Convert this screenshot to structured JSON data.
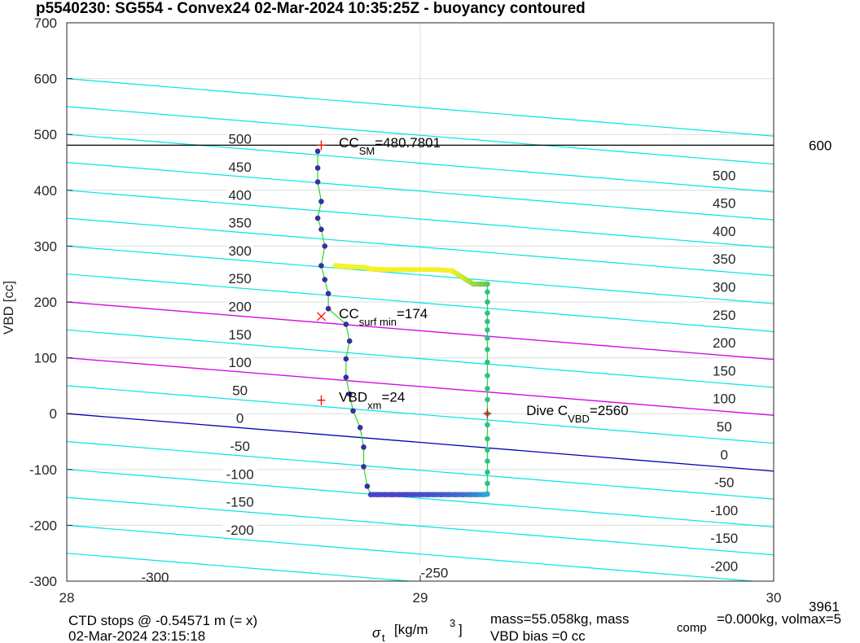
{
  "chart_data": {
    "type": "scatter",
    "title": "p5540230: SG554 - Convex24 02-Mar-2024 10:35:25Z - buoyancy contoured",
    "ylabel": "VBD [cc]",
    "xlabel_parts": {
      "sym": "σ",
      "sub": "t",
      "units": "[kg/m",
      "sup": "3",
      "close": "]"
    },
    "xlim": [
      28,
      30
    ],
    "ylim": [
      -300,
      700
    ],
    "xticks": [
      "28",
      "29",
      "30"
    ],
    "yticks": [
      "-300",
      "-200",
      "-100",
      "0",
      "100",
      "200",
      "300",
      "400",
      "500",
      "600",
      "700"
    ],
    "grid": true,
    "contour_slope": -51.5,
    "contours": {
      "cyan": [
        -350,
        -300,
        -250,
        -200,
        -150,
        -100,
        -50,
        50,
        100,
        150,
        200,
        250,
        300,
        350,
        400,
        450,
        500,
        550,
        600
      ],
      "magenta": [
        200,
        100
      ],
      "blue": [
        0
      ]
    },
    "contour_labels": [
      {
        "text": "500",
        "x": 28.49,
        "y": 492
      },
      {
        "text": "450",
        "x": 28.49,
        "y": 442
      },
      {
        "text": "400",
        "x": 28.49,
        "y": 392
      },
      {
        "text": "350",
        "x": 28.49,
        "y": 342
      },
      {
        "text": "300",
        "x": 28.49,
        "y": 292
      },
      {
        "text": "250",
        "x": 28.49,
        "y": 242
      },
      {
        "text": "200",
        "x": 28.49,
        "y": 192
      },
      {
        "text": "150",
        "x": 28.49,
        "y": 142
      },
      {
        "text": "100",
        "x": 28.49,
        "y": 92
      },
      {
        "text": "50",
        "x": 28.49,
        "y": 42
      },
      {
        "text": "0",
        "x": 28.49,
        "y": -8
      },
      {
        "text": "-50",
        "x": 28.49,
        "y": -58
      },
      {
        "text": "-100",
        "x": 28.49,
        "y": -108
      },
      {
        "text": "-150",
        "x": 28.49,
        "y": -158
      },
      {
        "text": "-200",
        "x": 28.49,
        "y": -208
      },
      {
        "text": "-300",
        "x": 28.25,
        "y": -293
      },
      {
        "text": "-250",
        "x": 29.04,
        "y": -285
      },
      {
        "text": "500",
        "x": 29.86,
        "y": 427
      },
      {
        "text": "450",
        "x": 29.86,
        "y": 377
      },
      {
        "text": "400",
        "x": 29.86,
        "y": 327
      },
      {
        "text": "350",
        "x": 29.86,
        "y": 277
      },
      {
        "text": "300",
        "x": 29.86,
        "y": 227
      },
      {
        "text": "250",
        "x": 29.86,
        "y": 177
      },
      {
        "text": "200",
        "x": 29.86,
        "y": 127
      },
      {
        "text": "150",
        "x": 29.86,
        "y": 77
      },
      {
        "text": "100",
        "x": 29.86,
        "y": 27
      },
      {
        "text": "50",
        "x": 29.86,
        "y": -23
      },
      {
        "text": "0",
        "x": 29.86,
        "y": -73
      },
      {
        "text": "-50",
        "x": 29.86,
        "y": -123
      },
      {
        "text": "-100",
        "x": 29.86,
        "y": -173
      },
      {
        "text": "-150",
        "x": 29.86,
        "y": -223
      },
      {
        "text": "-200",
        "x": 29.86,
        "y": -273
      }
    ],
    "hline": {
      "y": 480.78,
      "label": "600"
    },
    "series": [
      {
        "values": [
          [
            28.71,
            470
          ],
          [
            28.71,
            440
          ],
          [
            28.71,
            415
          ],
          [
            28.72,
            380
          ],
          [
            28.71,
            350
          ],
          [
            28.72,
            330
          ],
          [
            28.73,
            300
          ],
          [
            28.72,
            265
          ],
          [
            28.73,
            240
          ],
          [
            28.74,
            215
          ],
          [
            28.74,
            188
          ],
          [
            28.79,
            160
          ],
          [
            28.8,
            130
          ],
          [
            28.79,
            98
          ],
          [
            28.79,
            65
          ],
          [
            28.8,
            35
          ],
          [
            28.81,
            5
          ],
          [
            28.83,
            -25
          ],
          [
            28.84,
            -60
          ],
          [
            28.84,
            -95
          ],
          [
            28.85,
            -130
          ],
          [
            28.86,
            -145
          ]
        ]
      },
      {
        "values": [
          [
            28.86,
            -145
          ],
          [
            28.88,
            -145
          ],
          [
            28.9,
            -145
          ],
          [
            28.92,
            -145
          ],
          [
            28.94,
            -145
          ],
          [
            28.96,
            -145
          ],
          [
            28.98,
            -145
          ],
          [
            29.0,
            -145
          ],
          [
            29.02,
            -145
          ],
          [
            29.04,
            -145
          ],
          [
            29.06,
            -145
          ],
          [
            29.08,
            -145
          ],
          [
            29.1,
            -145
          ],
          [
            29.12,
            -145
          ],
          [
            29.14,
            -145
          ],
          [
            29.16,
            -145
          ],
          [
            29.18,
            -145
          ],
          [
            29.19,
            -144
          ]
        ]
      },
      {
        "values": [
          [
            29.19,
            -144
          ],
          [
            29.19,
            -125
          ],
          [
            29.19,
            -105
          ],
          [
            29.19,
            -85
          ],
          [
            29.19,
            -65
          ],
          [
            29.19,
            -45
          ],
          [
            29.19,
            -20
          ],
          [
            29.19,
            0
          ],
          [
            29.19,
            25
          ],
          [
            29.19,
            45
          ],
          [
            29.19,
            68
          ],
          [
            29.19,
            92
          ],
          [
            29.19,
            115
          ],
          [
            29.19,
            135
          ],
          [
            29.19,
            150
          ],
          [
            29.19,
            165
          ],
          [
            29.19,
            180
          ],
          [
            29.19,
            200
          ],
          [
            29.19,
            218
          ],
          [
            29.19,
            232
          ]
        ]
      },
      {
        "values": [
          [
            29.19,
            232
          ],
          [
            29.17,
            232
          ],
          [
            29.15,
            232
          ],
          [
            29.13,
            240
          ],
          [
            29.11,
            248
          ],
          [
            29.09,
            256
          ],
          [
            29.05,
            258
          ],
          [
            29.0,
            258
          ],
          [
            28.95,
            258
          ],
          [
            28.9,
            258
          ],
          [
            28.86,
            259
          ],
          [
            28.84,
            262
          ],
          [
            28.8,
            263
          ],
          [
            28.78,
            264
          ],
          [
            28.76,
            265
          ]
        ]
      }
    ],
    "markers": [
      {
        "kind": "plus",
        "x": 28.72,
        "y": 480.78,
        "color": "#ff0000"
      },
      {
        "kind": "x",
        "x": 28.72,
        "y": 174,
        "color": "#ff0000"
      },
      {
        "kind": "plus",
        "x": 28.72,
        "y": 24,
        "color": "#ff0000"
      },
      {
        "kind": "plus",
        "x": 29.19,
        "y": 0,
        "color": "#ff0000"
      }
    ],
    "annotations": [
      {
        "main": "CC",
        "sub": "SM",
        "tail": "=480.7801",
        "x": 28.77,
        "y": 480
      },
      {
        "main": "CC",
        "sub": "surf min",
        "tail": "=174",
        "x": 28.77,
        "y": 174
      },
      {
        "main": "VBD",
        "sub": "xm",
        "tail": "=24",
        "x": 28.77,
        "y": 24
      },
      {
        "main": "Dive C",
        "sub": "VBD",
        "tail": "=2560",
        "x": 29.3,
        "y": 0
      }
    ]
  },
  "footer": {
    "left_line1": "CTD stops @ -0.54571 m (= x)",
    "left_line2": "02-Mar-2024 23:15:18",
    "mass_line1": "mass=55.058kg, mass",
    "mass_sub": "comp",
    "mass_tail": "=0.000kg, volmax=5",
    "mass_line2": "VBD bias =0 cc",
    "right_num": "3961"
  },
  "colors": {
    "cyan": "#00e5e5",
    "magenta": "#e600e6",
    "blue": "#0000b3",
    "hline": "#000000",
    "grid": "#dcdcdc",
    "axis": "#262626",
    "dot_descent": "#3a2da0",
    "dot_bottom": "#4a44cf",
    "dot_bottom_end": "#2ea8d8",
    "dot_ascent": "#2fc08a",
    "dot_top_start": "#5cc55c",
    "dot_top_end": "#f5f02a",
    "connector": "#22dd22"
  }
}
